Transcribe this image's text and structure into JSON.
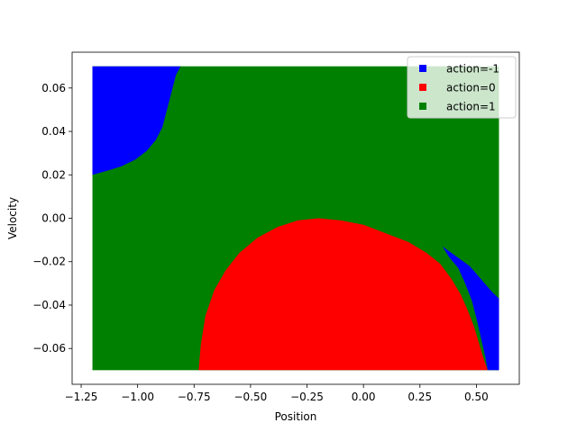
{
  "chart_data": {
    "type": "heatmap",
    "title": "",
    "xlabel": "Position",
    "ylabel": "Velocity",
    "xlim": [
      -1.29,
      0.69
    ],
    "ylim": [
      -0.0765,
      0.0765
    ],
    "x_range": [
      -1.2,
      0.6
    ],
    "y_range": [
      -0.07,
      0.07
    ],
    "x_ticks": [
      -1.25,
      -1.0,
      -0.75,
      -0.5,
      -0.25,
      0.0,
      0.25,
      0.5
    ],
    "x_tick_labels": [
      "−1.25",
      "−1.00",
      "−0.75",
      "−0.50",
      "−0.25",
      "0.00",
      "0.25",
      "0.50"
    ],
    "y_ticks": [
      -0.06,
      -0.04,
      -0.02,
      0.0,
      0.02,
      0.04,
      0.06
    ],
    "y_tick_labels": [
      "−0.06",
      "−0.04",
      "−0.02",
      "0.00",
      "0.02",
      "0.04",
      "0.06"
    ],
    "grid": false,
    "legend_position": "top-right",
    "default_action": "action=1",
    "series": [
      {
        "name": "action=-1",
        "color": "#0000ff",
        "regions": [
          {
            "location": "top-left",
            "boundary": [
              [
                -1.2,
                0.07
              ],
              [
                -0.81,
                0.07
              ],
              [
                -0.83,
                0.066
              ],
              [
                -0.85,
                0.058
              ],
              [
                -0.87,
                0.05
              ],
              [
                -0.89,
                0.042
              ],
              [
                -0.92,
                0.036
              ],
              [
                -0.96,
                0.031
              ],
              [
                -1.01,
                0.027
              ],
              [
                -1.07,
                0.024
              ],
              [
                -1.13,
                0.022
              ],
              [
                -1.2,
                0.02
              ]
            ]
          },
          {
            "location": "bottom-right",
            "boundary": [
              [
                0.6,
                -0.07
              ],
              [
                0.6,
                -0.037
              ],
              [
                0.57,
                -0.034
              ],
              [
                0.52,
                -0.028
              ],
              [
                0.47,
                -0.022
              ],
              [
                0.35,
                -0.013
              ],
              [
                0.38,
                -0.018
              ],
              [
                0.42,
                -0.023
              ],
              [
                0.45,
                -0.03
              ],
              [
                0.48,
                -0.038
              ],
              [
                0.5,
                -0.046
              ],
              [
                0.52,
                -0.055
              ],
              [
                0.54,
                -0.064
              ],
              [
                0.55,
                -0.07
              ]
            ]
          }
        ]
      },
      {
        "name": "action=0",
        "color": "#ff0000",
        "regions": [
          {
            "location": "center-bottom",
            "boundary": [
              [
                -0.73,
                -0.07
              ],
              [
                -0.72,
                -0.058
              ],
              [
                -0.7,
                -0.045
              ],
              [
                -0.66,
                -0.033
              ],
              [
                -0.61,
                -0.024
              ],
              [
                -0.55,
                -0.016
              ],
              [
                -0.47,
                -0.009
              ],
              [
                -0.38,
                -0.004
              ],
              [
                -0.29,
                -0.001
              ],
              [
                -0.2,
                0.0
              ],
              [
                -0.1,
                -0.001
              ],
              [
                0.0,
                -0.003
              ],
              [
                0.1,
                -0.007
              ],
              [
                0.2,
                -0.011
              ],
              [
                0.28,
                -0.016
              ],
              [
                0.34,
                -0.021
              ],
              [
                0.39,
                -0.028
              ],
              [
                0.43,
                -0.035
              ],
              [
                0.46,
                -0.042
              ],
              [
                0.49,
                -0.05
              ],
              [
                0.51,
                -0.057
              ],
              [
                0.53,
                -0.064
              ],
              [
                0.55,
                -0.07
              ]
            ]
          }
        ]
      },
      {
        "name": "action=1",
        "color": "#008000",
        "regions": []
      }
    ]
  }
}
